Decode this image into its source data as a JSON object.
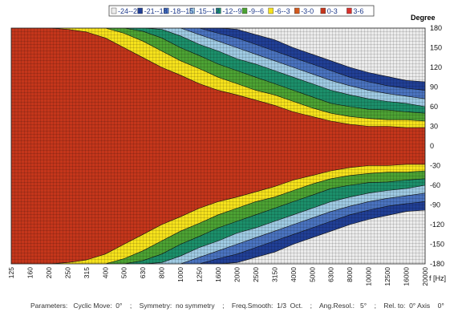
{
  "chart_data": {
    "type": "heatmap",
    "legend": [
      {
        "label": "-24--21",
        "color": "#ececec"
      },
      {
        "label": "-21--18",
        "color": "#213f95"
      },
      {
        "label": "-18--15",
        "color": "#4a73bf"
      },
      {
        "label": "-15--12",
        "color": "#9fcae3"
      },
      {
        "label": "-12--9",
        "color": "#1c8f6a"
      },
      {
        "label": "-9--6",
        "color": "#4ca233"
      },
      {
        "label": "-6--3",
        "color": "#f6e21c"
      },
      {
        "label": "-3-0",
        "color": "#d25a1f"
      },
      {
        "label": "0-3",
        "color": "#c4361b"
      },
      {
        "label": "3-6",
        "color": "#d9312d"
      }
    ],
    "ylabel": "Degree",
    "xlabel": "f [Hz]",
    "y_ticks": [
      "180",
      "150",
      "120",
      "90",
      "60",
      "30",
      "0",
      "-30",
      "-60",
      "-90",
      "-120",
      "-150",
      "-180"
    ],
    "ylim": [
      -180,
      180
    ],
    "x_ticks": [
      "125",
      "160",
      "200",
      "250",
      "315",
      "400",
      "500",
      "630",
      "800",
      "1000",
      "1250",
      "1600",
      "2000",
      "2500",
      "3150",
      "4000",
      "5000",
      "6300",
      "8000",
      "10000",
      "12500",
      "16000",
      "20000"
    ],
    "level_boundaries_deg": {
      "x_hz": [
        125,
        160,
        200,
        250,
        315,
        400,
        500,
        630,
        800,
        1000,
        1250,
        1600,
        2000,
        2500,
        3150,
        4000,
        5000,
        6300,
        8000,
        10000,
        12500,
        16000,
        20000
      ],
      "minus_3dB": [
        180,
        180,
        180,
        178,
        174,
        165,
        150,
        135,
        120,
        108,
        95,
        85,
        78,
        70,
        62,
        52,
        45,
        38,
        33,
        30,
        30,
        28,
        28
      ],
      "minus_6dB": [
        180,
        180,
        180,
        180,
        180,
        180,
        172,
        160,
        145,
        130,
        118,
        105,
        95,
        85,
        78,
        68,
        58,
        50,
        45,
        42,
        40,
        40,
        38
      ],
      "minus_9dB": [
        180,
        180,
        180,
        180,
        180,
        180,
        180,
        175,
        165,
        150,
        138,
        125,
        115,
        105,
        95,
        85,
        75,
        65,
        60,
        56,
        55,
        52,
        50
      ],
      "minus_12dB": [
        180,
        180,
        180,
        180,
        180,
        180,
        180,
        180,
        178,
        168,
        155,
        145,
        133,
        125,
        115,
        105,
        95,
        85,
        78,
        72,
        68,
        65,
        60
      ],
      "minus_15dB": [
        180,
        180,
        180,
        180,
        180,
        180,
        180,
        180,
        180,
        180,
        170,
        160,
        150,
        140,
        130,
        120,
        110,
        100,
        92,
        85,
        80,
        76,
        72
      ],
      "minus_18dB": [
        180,
        180,
        180,
        180,
        180,
        180,
        180,
        180,
        180,
        180,
        180,
        172,
        165,
        155,
        145,
        135,
        125,
        115,
        105,
        98,
        92,
        88,
        85
      ],
      "minus_21dB": [
        180,
        180,
        180,
        180,
        180,
        180,
        180,
        180,
        180,
        180,
        180,
        180,
        178,
        170,
        162,
        150,
        140,
        130,
        120,
        112,
        106,
        100,
        98
      ]
    }
  },
  "parameters": {
    "text": "Parameters:   Cyclic Move:  0°    ;    Symmetry:  no symmetry    ;    Freq.Smooth:  1/3  Oct.    ;    Ang.Resol.:   5°    ;    Rel. to:  0° Axis    0°"
  }
}
